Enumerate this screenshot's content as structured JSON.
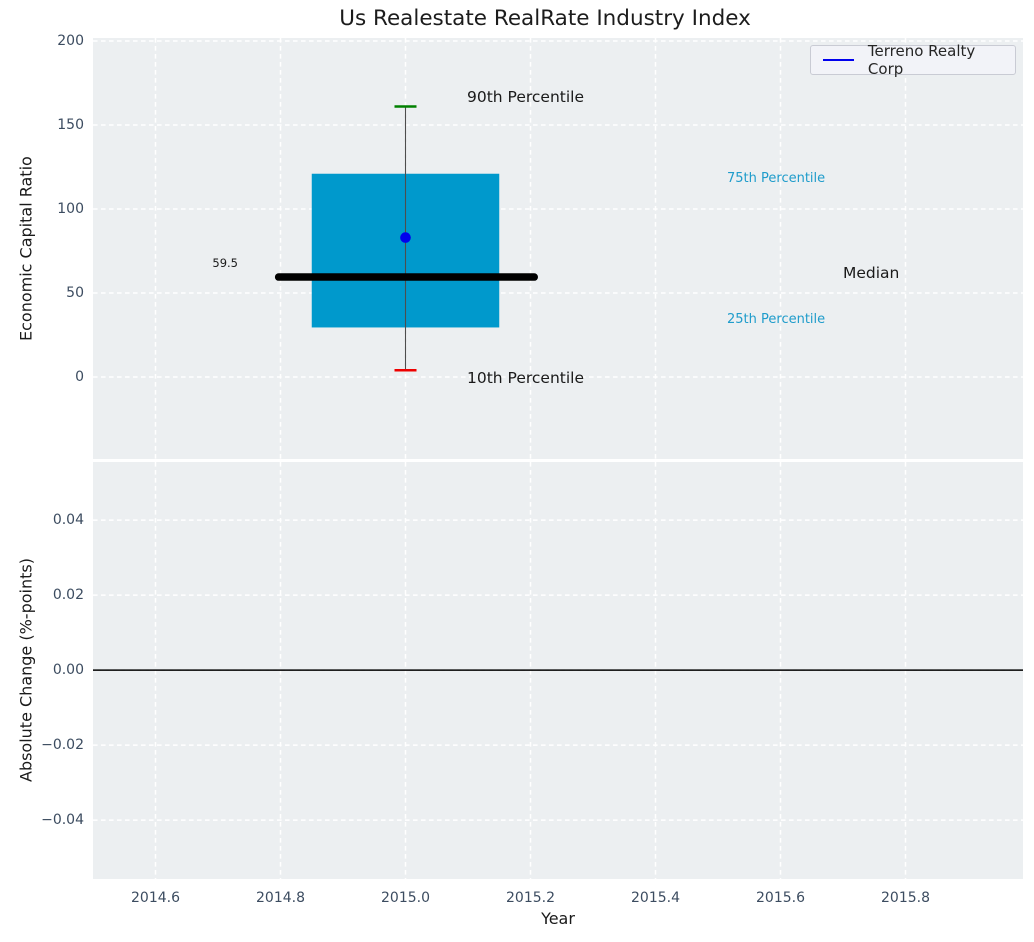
{
  "title": "Us Realestate RealRate Industry Index",
  "legend": {
    "label": "Terreno Realty Corp"
  },
  "colors": {
    "figure_bg": "#ffffff",
    "plot_bg": "#eceff1",
    "grid": "#ffffff",
    "box_fill": "#0099cc",
    "median_line": "#000000",
    "whisker": "#4d4d4d",
    "cap_90th": "#008000",
    "cap_10th": "#ee0000",
    "company_dot": "#0000ee",
    "legend_line": "#0000ee",
    "zero_line": "#000000",
    "tick_text": "#3c4c60",
    "label_text": "#1a1a1a",
    "percentile_text": "#1f9ccb"
  },
  "annotations": {
    "p90": "90th Percentile",
    "p75": "75th Percentile",
    "median": "Median",
    "p25": "25th Percentile",
    "p10": "10th Percentile",
    "median_value": "59.5"
  },
  "chart_data": [
    {
      "type": "boxplot",
      "title": "Us Realestate RealRate Industry Index",
      "ylabel": "Economic Capital Ratio",
      "series_name": "Terreno Realty Corp",
      "x": 2015.0,
      "stats": {
        "p10": 4,
        "q1": 29.5,
        "median": 59.5,
        "q3": 121,
        "p90": 161,
        "company_value": 83
      },
      "median_label": "59.5",
      "box_x_span": [
        2014.85,
        2015.15
      ],
      "median_x_span": [
        2014.797,
        2015.206
      ],
      "xlim": [
        2014.5,
        2015.988
      ],
      "ylim": [
        -48.8,
        201.8
      ],
      "grid": true,
      "legend_position": "upper right",
      "yticks": {
        "values": [
          0,
          50,
          100,
          150,
          200
        ],
        "labels": [
          "0",
          "50",
          "100",
          "150",
          "200"
        ]
      }
    },
    {
      "type": "line",
      "ylabel": "Absolute Change (%-points)",
      "xlabel": "Year",
      "xlim": [
        2014.5,
        2015.988
      ],
      "ylim": [
        -0.0557,
        0.0555
      ],
      "grid": true,
      "zero_line": 0.0,
      "series": [],
      "yticks": {
        "values": [
          0.04,
          0.02,
          0.0,
          -0.02,
          -0.04
        ],
        "labels": [
          "0.04",
          "0.02",
          "0.00",
          "−0.02",
          "−0.04"
        ]
      },
      "xticks": {
        "values": [
          2014.6,
          2014.8,
          2015.0,
          2015.2,
          2015.4,
          2015.6,
          2015.8
        ],
        "labels": [
          "2014.6",
          "2014.8",
          "2015.0",
          "2015.2",
          "2015.4",
          "2015.6",
          "2015.8"
        ]
      }
    }
  ]
}
